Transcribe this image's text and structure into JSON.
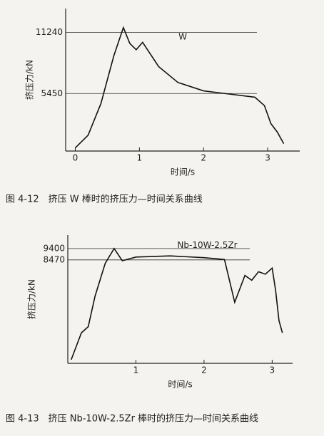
{
  "chart_data": [
    {
      "type": "line",
      "title": "图 4-12　挤压 W 棒时的挤压力—时间关系曲线",
      "x_label": "时间/s",
      "y_label": "挤压力/kN",
      "x": [
        0,
        0.2,
        0.4,
        0.6,
        0.75,
        0.85,
        0.95,
        1.05,
        1.3,
        1.6,
        2.0,
        2.4,
        2.8,
        2.95,
        3.05,
        3.15,
        3.25
      ],
      "series": [
        {
          "name": "W",
          "color": "#111111",
          "values": [
            300,
            1500,
            4500,
            9000,
            11700,
            10200,
            9600,
            10300,
            8000,
            6500,
            5700,
            5400,
            5100,
            4300,
            2600,
            1800,
            700
          ]
        }
      ],
      "xlim": [
        -0.15,
        3.5
      ],
      "ylim": [
        0,
        13500
      ],
      "xticks": [
        0,
        1,
        2,
        3
      ],
      "yticks": [
        5450,
        11240
      ],
      "grid": true
    },
    {
      "type": "line",
      "title": "图 4-13　挤压 Nb-10W-2.5Zr 棒时的挤压力—时间关系曲线",
      "x_label": "时间/s",
      "y_label": "挤压力/kN",
      "x": [
        0.05,
        0.2,
        0.3,
        0.4,
        0.55,
        0.68,
        0.8,
        1.0,
        1.5,
        2.0,
        2.3,
        2.45,
        2.6,
        2.7,
        2.8,
        2.9,
        3.0,
        3.05,
        3.1,
        3.15
      ],
      "series": [
        {
          "name": "Nb-10W-2.5Zr",
          "color": "#111111",
          "values": [
            300,
            2500,
            3000,
            5500,
            8200,
            9400,
            8400,
            8700,
            8800,
            8650,
            8500,
            5000,
            7200,
            6800,
            7500,
            7300,
            7800,
            6000,
            3500,
            2500
          ]
        }
      ],
      "xlim": [
        0,
        3.3
      ],
      "ylim": [
        0,
        10500
      ],
      "xticks": [
        1,
        2,
        3
      ],
      "yticks": [
        8470,
        9400
      ],
      "grid": true
    }
  ]
}
